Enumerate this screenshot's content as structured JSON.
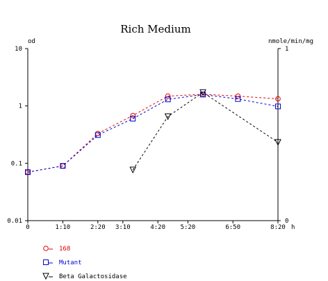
{
  "chart_data": {
    "type": "line",
    "title": "Rich Medium",
    "y_left_label": "od",
    "y_right_label": "nmole/min/mg",
    "x_unit_label": "h",
    "x_ticks": [
      "0",
      "1:10",
      "2:20",
      "3:10",
      "4:20",
      "5:20",
      "6:50",
      "8:20"
    ],
    "x_tick_hours": [
      0,
      1.1667,
      2.3333,
      3.1667,
      4.3333,
      5.3333,
      6.8333,
      8.3333
    ],
    "x_range_hours": [
      0,
      8.3333
    ],
    "y_left_scale": "log",
    "y_left_ticks": [
      "10",
      "1",
      "0.1",
      "0.01"
    ],
    "y_left_range": [
      0.01,
      10
    ],
    "y_right_ticks": [
      "1",
      "0"
    ],
    "y_right_range": [
      0,
      1
    ],
    "series": [
      {
        "name": "168",
        "axis": "left",
        "color": "#e00000",
        "marker": "circle",
        "dashed": true,
        "x": [
          0,
          1.1667,
          2.3333,
          3.5,
          4.6667,
          5.8333,
          7,
          9.3333
        ],
        "y": [
          0.07,
          0.09,
          0.33,
          0.68,
          1.48,
          1.6,
          1.48,
          1.33
        ]
      },
      {
        "name": "Mutant",
        "axis": "left",
        "color": "#0000cc",
        "marker": "square",
        "dashed": true,
        "x": [
          0,
          1.1667,
          2.3333,
          3.5,
          4.6667,
          5.8333,
          7,
          9.3333
        ],
        "y": [
          0.07,
          0.09,
          0.31,
          0.6,
          1.3,
          1.58,
          1.32,
          0.98
        ]
      },
      {
        "name": "Beta Galactosidase",
        "axis": "right",
        "color": "#000000",
        "marker": "triangle-down",
        "dashed": true,
        "x": [
          3.5,
          4.6667,
          5.8333,
          9.3333
        ],
        "y": [
          0.295,
          0.605,
          0.745,
          0.455
        ]
      }
    ],
    "legend_position": "bottom-left",
    "grid": false
  }
}
